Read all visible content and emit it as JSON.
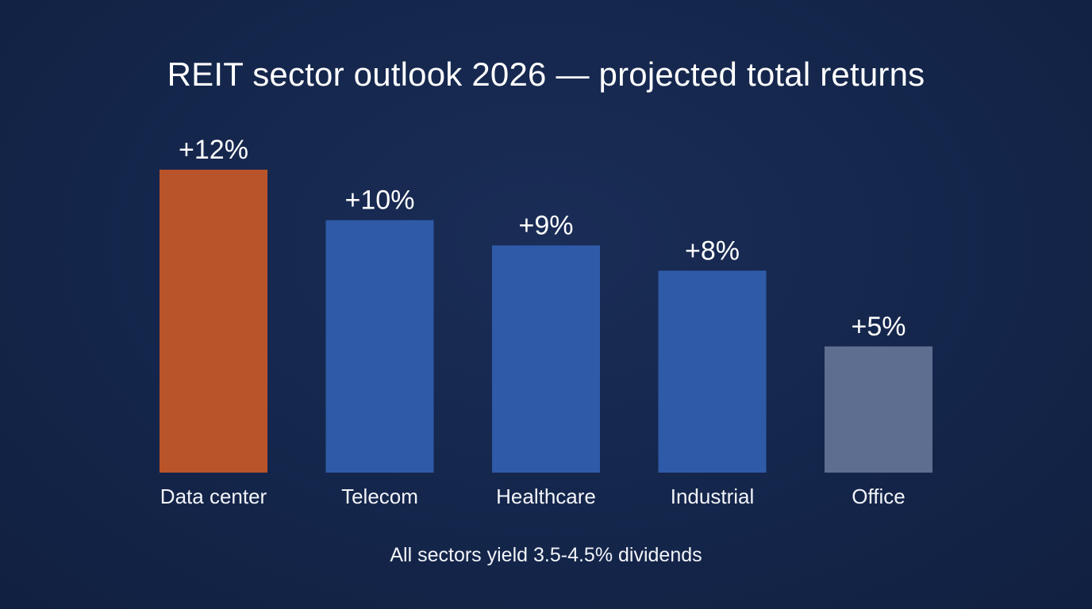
{
  "chart_data": {
    "type": "bar",
    "title": "REIT sector outlook 2026 — projected total returns",
    "categories": [
      "Data center",
      "Telecom",
      "Healthcare",
      "Industrial",
      "Office"
    ],
    "values": [
      12,
      10,
      9,
      8,
      5
    ],
    "value_labels": [
      "+12%",
      "+10%",
      "+9%",
      "+8%",
      "+5%"
    ],
    "bar_colors": [
      "#b9542a",
      "#2f5aa8",
      "#2f5aa8",
      "#2f5aa8",
      "#5d6e91"
    ],
    "xlabel": "",
    "ylabel": "",
    "ylim": [
      0,
      12
    ],
    "grid": false,
    "legend": "none"
  },
  "footnote": "All sectors yield 3.5-4.5% dividends"
}
